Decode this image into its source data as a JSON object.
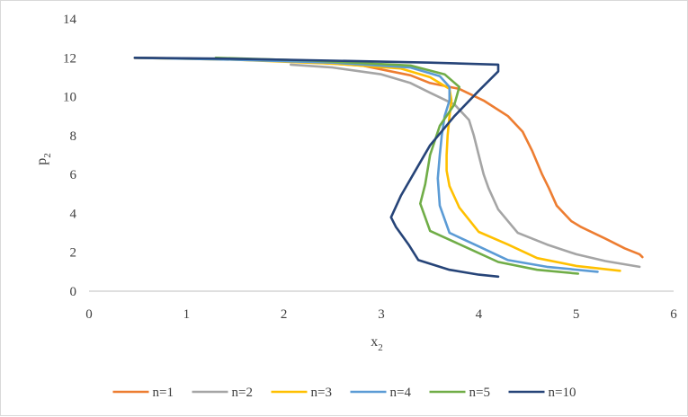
{
  "chart_data": {
    "type": "line",
    "xlabel": "x",
    "xlabel_sub": "2",
    "ylabel": "p",
    "ylabel_sub": "2",
    "xlim": [
      0,
      6
    ],
    "ylim": [
      0,
      14
    ],
    "x_ticks": [
      "0",
      "1",
      "2",
      "3",
      "4",
      "5",
      "6"
    ],
    "y_ticks": [
      "0",
      "2",
      "4",
      "6",
      "8",
      "10",
      "12",
      "14"
    ],
    "grid": false,
    "legend_position": "bottom",
    "series": [
      {
        "name": "n=1",
        "color": "#ED7D31",
        "points": [
          [
            0.47,
            12.0
          ],
          [
            1.2,
            11.95
          ],
          [
            2.0,
            11.85
          ],
          [
            2.8,
            11.6
          ],
          [
            3.3,
            11.1
          ],
          [
            3.5,
            10.7
          ],
          [
            3.8,
            10.4
          ],
          [
            4.05,
            9.8
          ],
          [
            4.3,
            9.0
          ],
          [
            4.45,
            8.2
          ],
          [
            4.55,
            7.2
          ],
          [
            4.65,
            6.0
          ],
          [
            4.72,
            5.3
          ],
          [
            4.8,
            4.4
          ],
          [
            4.95,
            3.6
          ],
          [
            5.05,
            3.3
          ],
          [
            5.3,
            2.7
          ],
          [
            5.5,
            2.2
          ],
          [
            5.65,
            1.9
          ],
          [
            5.68,
            1.75
          ]
        ]
      },
      {
        "name": "n=2",
        "color": "#A5A5A5",
        "points": [
          [
            2.07,
            11.65
          ],
          [
            2.5,
            11.5
          ],
          [
            3.0,
            11.15
          ],
          [
            3.3,
            10.7
          ],
          [
            3.5,
            10.2
          ],
          [
            3.75,
            9.6
          ],
          [
            3.9,
            8.8
          ],
          [
            3.95,
            8.0
          ],
          [
            4.0,
            7.0
          ],
          [
            4.05,
            6.0
          ],
          [
            4.1,
            5.3
          ],
          [
            4.2,
            4.2
          ],
          [
            4.4,
            3.0
          ],
          [
            4.7,
            2.4
          ],
          [
            5.0,
            1.9
          ],
          [
            5.3,
            1.55
          ],
          [
            5.65,
            1.25
          ]
        ]
      },
      {
        "name": "n=3",
        "color": "#FFC000",
        "points": [
          [
            0.47,
            12.0
          ],
          [
            1.5,
            11.9
          ],
          [
            2.5,
            11.7
          ],
          [
            3.2,
            11.45
          ],
          [
            3.5,
            11.0
          ],
          [
            3.7,
            10.4
          ],
          [
            3.72,
            9.8
          ],
          [
            3.7,
            9.0
          ],
          [
            3.68,
            8.0
          ],
          [
            3.67,
            7.0
          ],
          [
            3.67,
            6.2
          ],
          [
            3.7,
            5.4
          ],
          [
            3.8,
            4.3
          ],
          [
            4.0,
            3.05
          ],
          [
            4.3,
            2.4
          ],
          [
            4.6,
            1.7
          ],
          [
            5.0,
            1.3
          ],
          [
            5.45,
            1.05
          ]
        ]
      },
      {
        "name": "n=4",
        "color": "#5B9BD5",
        "points": [
          [
            0.47,
            12.0
          ],
          [
            1.5,
            11.9
          ],
          [
            2.5,
            11.75
          ],
          [
            3.3,
            11.5
          ],
          [
            3.6,
            11.05
          ],
          [
            3.7,
            10.5
          ],
          [
            3.7,
            9.8
          ],
          [
            3.65,
            9.0
          ],
          [
            3.62,
            8.0
          ],
          [
            3.6,
            7.0
          ],
          [
            3.58,
            5.8
          ],
          [
            3.6,
            4.4
          ],
          [
            3.7,
            3.0
          ],
          [
            4.0,
            2.3
          ],
          [
            4.3,
            1.6
          ],
          [
            4.7,
            1.25
          ],
          [
            5.22,
            1.0
          ]
        ]
      },
      {
        "name": "n=5",
        "color": "#70AD47",
        "points": [
          [
            1.3,
            12.0
          ],
          [
            2.3,
            11.85
          ],
          [
            3.3,
            11.6
          ],
          [
            3.65,
            11.15
          ],
          [
            3.8,
            10.5
          ],
          [
            3.75,
            9.6
          ],
          [
            3.6,
            8.5
          ],
          [
            3.5,
            7.0
          ],
          [
            3.45,
            5.5
          ],
          [
            3.4,
            4.5
          ],
          [
            3.5,
            3.1
          ],
          [
            3.85,
            2.3
          ],
          [
            4.2,
            1.5
          ],
          [
            4.6,
            1.1
          ],
          [
            5.02,
            0.9
          ]
        ]
      },
      {
        "name": "n=10",
        "color": "#264478",
        "points": [
          [
            0.47,
            12.0
          ],
          [
            1.5,
            11.95
          ],
          [
            2.5,
            11.85
          ],
          [
            3.5,
            11.75
          ],
          [
            4.2,
            11.65
          ],
          [
            4.2,
            11.3
          ],
          [
            4.0,
            10.3
          ],
          [
            3.75,
            9.0
          ],
          [
            3.5,
            7.5
          ],
          [
            3.35,
            6.2
          ],
          [
            3.2,
            4.9
          ],
          [
            3.1,
            3.8
          ],
          [
            3.15,
            3.3
          ],
          [
            3.28,
            2.4
          ],
          [
            3.38,
            1.6
          ],
          [
            3.7,
            1.1
          ],
          [
            4.0,
            0.85
          ],
          [
            4.2,
            0.75
          ]
        ]
      }
    ]
  }
}
